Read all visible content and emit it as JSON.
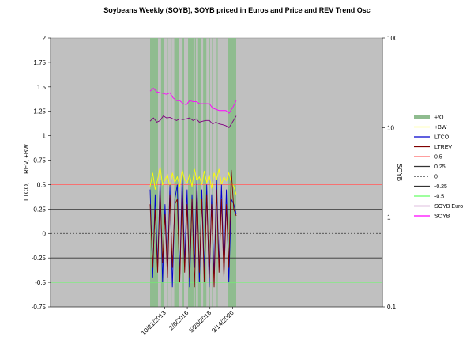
{
  "chart_data": {
    "type": "line",
    "title": "Soybeans Weekly (SOYB), SOYB priced in Euros and Price and REV Trend Osc",
    "ylabel": "LTCO, LTREV, +BW",
    "y2label": "SOYB",
    "ylim": [
      -0.75,
      2
    ],
    "yticks": [
      "2",
      "1.75",
      "1.5",
      "1.25",
      "1",
      "0.75",
      "0.5",
      "0.25",
      "0",
      "-0.25",
      "-0.5",
      "-0.75"
    ],
    "y2_scale": "log",
    "y2lim": [
      0.1,
      100
    ],
    "y2ticks": [
      "100",
      "10",
      "1",
      "0.1"
    ],
    "xticks": [
      "10/21/2013",
      "2/8/2016",
      "5/28/2018",
      "9/14/2020"
    ],
    "plot_background": "#c0c0c0",
    "legend_position": "right",
    "legend": [
      {
        "label": "+/O",
        "color": "#8fbc8f",
        "style": "band"
      },
      {
        "label": "+BW",
        "color": "#ffff00",
        "style": "line"
      },
      {
        "label": "LTCO",
        "color": "#0000cc",
        "style": "line"
      },
      {
        "label": "LTREV",
        "color": "#800000",
        "style": "line"
      },
      {
        "label": "0.5",
        "color": "#ff6666",
        "style": "line"
      },
      {
        "label": "0.25",
        "color": "#333333",
        "style": "line"
      },
      {
        "label": "0",
        "color": "#333333",
        "style": "dashed"
      },
      {
        "label": "-0.25",
        "color": "#333333",
        "style": "line"
      },
      {
        "label": "-0.5",
        "color": "#66ff66",
        "style": "line"
      },
      {
        "label": "SOYB Euro",
        "color": "#800080",
        "style": "line"
      },
      {
        "label": "SOYB",
        "color": "#ff00ff",
        "style": "line"
      }
    ],
    "reference_lines": [
      {
        "y": 0.5,
        "color": "#ff6666",
        "dash": false
      },
      {
        "y": 0.25,
        "color": "#333333",
        "dash": false
      },
      {
        "y": 0,
        "color": "#333333",
        "dash": true
      },
      {
        "y": -0.25,
        "color": "#333333",
        "dash": false
      },
      {
        "y": -0.5,
        "color": "#66ff66",
        "dash": false
      }
    ],
    "x_range": [
      "2012-05-01",
      "2021-01-25"
    ],
    "overbought_bands": [
      [
        "2012-05-01",
        "2013-02-18"
      ],
      [
        "2013-06-10",
        "2013-09-16"
      ],
      [
        "2014-01-06",
        "2014-02-17"
      ],
      [
        "2014-06-02",
        "2014-07-07"
      ],
      [
        "2014-10-13",
        "2015-04-06"
      ],
      [
        "2015-08-17",
        "2015-10-12"
      ],
      [
        "2016-03-07",
        "2016-09-26"
      ],
      [
        "2016-11-14",
        "2016-12-26"
      ],
      [
        "2017-03-13",
        "2017-06-19"
      ],
      [
        "2017-09-18",
        "2018-01-15"
      ],
      [
        "2018-04-23",
        "2018-05-28"
      ],
      [
        "2018-08-13",
        "2018-09-10"
      ],
      [
        "2019-02-04",
        "2019-03-11"
      ],
      [
        "2020-03-30",
        "2021-01-25"
      ]
    ],
    "series": [
      {
        "name": "SOYB",
        "axis": "right",
        "color": "#ff00ff",
        "x": [
          "2012-05-01",
          "2012-09-03",
          "2013-01-07",
          "2013-05-06",
          "2013-09-02",
          "2014-01-06",
          "2014-05-05",
          "2014-09-01",
          "2015-01-05",
          "2015-05-04",
          "2015-09-07",
          "2016-01-04",
          "2016-05-02",
          "2016-09-05",
          "2017-01-02",
          "2017-05-01",
          "2017-09-04",
          "2018-01-01",
          "2018-05-07",
          "2018-09-03",
          "2019-01-07",
          "2019-05-06",
          "2019-09-02",
          "2020-01-06",
          "2020-05-04",
          "2020-09-07",
          "2021-01-25"
        ],
        "y": [
          25.5,
          27.5,
          25.0,
          24.5,
          24.0,
          23.5,
          24.5,
          21.5,
          20.0,
          20.0,
          18.5,
          18.0,
          20.0,
          19.5,
          19.5,
          18.5,
          18.5,
          18.5,
          18.5,
          16.5,
          16.0,
          15.5,
          15.5,
          15.5,
          14.5,
          16.5,
          20.0
        ]
      },
      {
        "name": "SOYB Euro",
        "axis": "right",
        "color": "#800080",
        "x": [
          "2012-05-01",
          "2012-09-03",
          "2013-01-07",
          "2013-05-06",
          "2013-09-02",
          "2014-01-06",
          "2014-05-05",
          "2014-09-01",
          "2015-01-05",
          "2015-05-04",
          "2015-09-07",
          "2016-01-04",
          "2016-05-02",
          "2016-09-05",
          "2017-01-02",
          "2017-05-01",
          "2017-09-04",
          "2018-01-01",
          "2018-05-07",
          "2018-09-03",
          "2019-01-07",
          "2019-05-06",
          "2019-09-02",
          "2020-01-06",
          "2020-05-04",
          "2020-09-07",
          "2021-01-25"
        ],
        "y": [
          11.8,
          12.8,
          11.5,
          12.0,
          13.5,
          12.8,
          13.0,
          12.5,
          12.0,
          12.5,
          12.3,
          12.5,
          12.8,
          12.0,
          12.5,
          11.5,
          11.8,
          12.0,
          12.0,
          11.0,
          11.5,
          11.0,
          10.8,
          10.5,
          10.0,
          11.5,
          13.5
        ]
      },
      {
        "name": "+BW",
        "axis": "left",
        "color": "#ffff00",
        "x": [
          "2012-05-01",
          "2012-08-06",
          "2012-11-05",
          "2013-02-04",
          "2013-05-06",
          "2013-08-05",
          "2013-11-04",
          "2014-02-03",
          "2014-05-05",
          "2014-08-04",
          "2014-11-03",
          "2015-02-02",
          "2015-05-04",
          "2015-08-03",
          "2015-11-02",
          "2016-02-01",
          "2016-05-02",
          "2016-08-01",
          "2016-10-31",
          "2017-01-30",
          "2017-05-01",
          "2017-07-31",
          "2017-10-30",
          "2018-01-29",
          "2018-04-30",
          "2018-07-30",
          "2018-10-29",
          "2019-01-28",
          "2019-04-29",
          "2019-07-29",
          "2019-10-28",
          "2020-01-27",
          "2020-04-27",
          "2020-07-27",
          "2020-10-26",
          "2021-01-25"
        ],
        "y": [
          0.48,
          0.62,
          0.45,
          0.55,
          0.68,
          0.5,
          0.55,
          0.6,
          0.47,
          0.62,
          0.52,
          0.58,
          0.48,
          0.65,
          0.55,
          0.52,
          0.6,
          0.48,
          0.66,
          0.54,
          0.58,
          0.5,
          0.64,
          0.52,
          0.6,
          0.46,
          0.62,
          0.55,
          0.66,
          0.5,
          0.58,
          0.54,
          0.62,
          0.52,
          0.48,
          0.4
        ]
      },
      {
        "name": "LTCO",
        "axis": "left",
        "color": "#0000cc",
        "x": [
          "2012-05-01",
          "2012-08-06",
          "2012-11-05",
          "2013-02-04",
          "2013-05-06",
          "2013-08-05",
          "2013-11-04",
          "2014-02-03",
          "2014-05-05",
          "2014-08-04",
          "2014-11-03",
          "2015-02-02",
          "2015-05-04",
          "2015-08-03",
          "2015-11-02",
          "2016-02-01",
          "2016-05-02",
          "2016-08-01",
          "2016-10-31",
          "2017-01-30",
          "2017-05-01",
          "2017-07-31",
          "2017-10-30",
          "2018-01-29",
          "2018-04-30",
          "2018-07-30",
          "2018-10-29",
          "2019-01-28",
          "2019-04-29",
          "2019-07-29",
          "2019-10-28",
          "2020-01-27",
          "2020-04-27",
          "2020-07-27",
          "2020-10-26",
          "2021-01-25"
        ],
        "y": [
          0.45,
          -0.45,
          0.4,
          -0.35,
          0.55,
          -0.5,
          0.3,
          -0.4,
          0.5,
          -0.55,
          0.35,
          0.5,
          -0.45,
          0.6,
          -0.3,
          0.45,
          -0.55,
          0.4,
          -0.35,
          0.55,
          -0.5,
          0.45,
          -0.4,
          0.5,
          -0.55,
          0.4,
          -0.45,
          0.55,
          -0.35,
          0.5,
          -0.4,
          0.45,
          -0.5,
          0.35,
          0.3,
          0.2
        ]
      },
      {
        "name": "LTREV",
        "axis": "left",
        "color": "#800000",
        "x": [
          "2012-05-01",
          "2012-08-06",
          "2012-11-05",
          "2013-02-04",
          "2013-05-06",
          "2013-08-05",
          "2013-11-04",
          "2014-02-03",
          "2014-05-05",
          "2014-08-04",
          "2014-11-03",
          "2015-02-02",
          "2015-05-04",
          "2015-08-03",
          "2015-11-02",
          "2016-02-01",
          "2016-05-02",
          "2016-08-01",
          "2016-10-31",
          "2017-01-30",
          "2017-05-01",
          "2017-07-31",
          "2017-10-30",
          "2018-01-29",
          "2018-04-30",
          "2018-07-30",
          "2018-10-29",
          "2019-01-28",
          "2019-04-29",
          "2019-07-29",
          "2019-10-28",
          "2020-01-27",
          "2020-04-27",
          "2020-07-27",
          "2020-10-26",
          "2021-01-25"
        ],
        "y": [
          0.3,
          -0.35,
          0.25,
          -0.4,
          0.45,
          -0.3,
          0.2,
          -0.45,
          0.4,
          -0.35,
          0.3,
          0.35,
          -0.5,
          0.45,
          -0.4,
          0.3,
          -0.45,
          0.35,
          -0.55,
          0.45,
          -0.4,
          0.35,
          -0.5,
          0.4,
          -0.45,
          0.3,
          -0.55,
          0.45,
          -0.4,
          0.35,
          -0.45,
          0.3,
          -0.35,
          0.65,
          0.25,
          0.18
        ]
      }
    ]
  }
}
